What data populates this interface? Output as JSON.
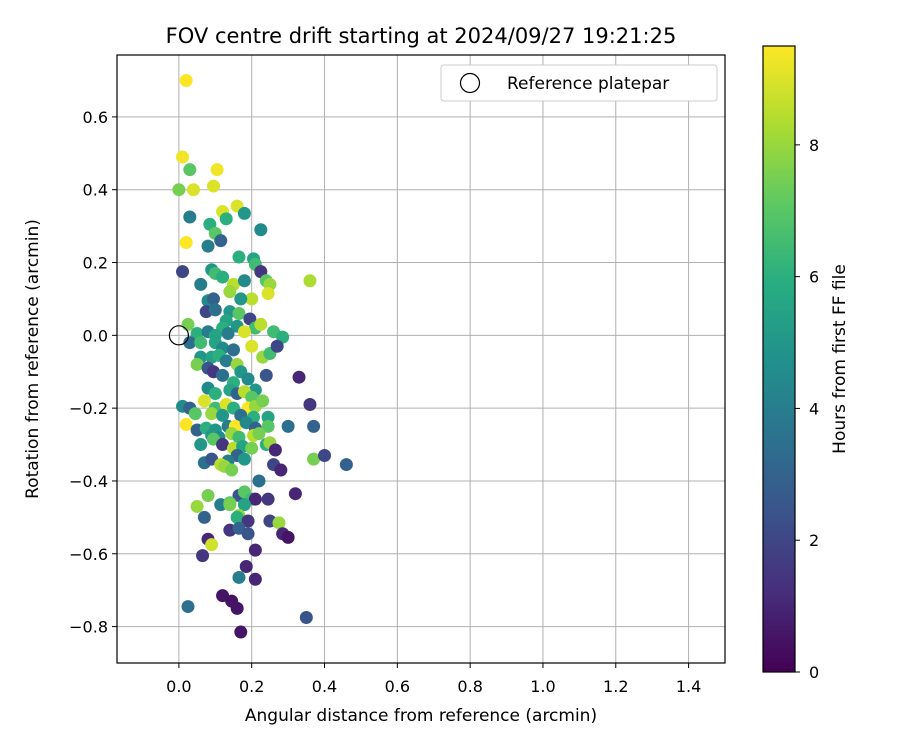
{
  "chart_data": {
    "type": "scatter",
    "title": "FOV centre drift starting at 2024/09/27 19:21:25",
    "xlabel": "Angular distance from reference (arcmin)",
    "ylabel": "Rotation from reference (arcmin)",
    "xlim": [
      -0.17,
      1.5
    ],
    "ylim": [
      -0.9,
      0.77
    ],
    "x_ticks": [
      0.0,
      0.2,
      0.4,
      0.6,
      0.8,
      1.0,
      1.2,
      1.4
    ],
    "x_tick_labels": [
      "0.0",
      "0.2",
      "0.4",
      "0.6",
      "0.8",
      "1.0",
      "1.2",
      "1.4"
    ],
    "y_ticks": [
      0.6,
      0.4,
      0.2,
      0.0,
      -0.2,
      -0.4,
      -0.6,
      -0.8
    ],
    "y_tick_labels": [
      "0.6",
      "0.4",
      "0.2",
      "0.0",
      "−0.2",
      "−0.4",
      "−0.6",
      "−0.8"
    ],
    "grid": true,
    "legend": {
      "placement": "top-right",
      "entries": [
        {
          "label": "Reference platepar",
          "marker": "open-circle"
        }
      ]
    },
    "reference_point": {
      "x": 0.0,
      "y": 0.0
    },
    "colorbar": {
      "label": "Hours from first FF file",
      "colormap": "viridis",
      "min": 0,
      "max": 9.5,
      "ticks": [
        0,
        2,
        4,
        6,
        8
      ],
      "tick_labels": [
        "0",
        "2",
        "4",
        "6",
        "8"
      ]
    },
    "points": [
      [
        0.02,
        0.7,
        9.5
      ],
      [
        0.01,
        0.49,
        9.3
      ],
      [
        0.04,
        0.4,
        9.0
      ],
      [
        0.105,
        0.455,
        9.3
      ],
      [
        0.095,
        0.41,
        9.0
      ],
      [
        0.0,
        0.4,
        7.5
      ],
      [
        0.03,
        0.455,
        7.0
      ],
      [
        0.16,
        0.355,
        9.0
      ],
      [
        0.12,
        0.34,
        9.0
      ],
      [
        0.13,
        0.32,
        6.0
      ],
      [
        0.085,
        0.305,
        6.0
      ],
      [
        0.1,
        0.28,
        7.0
      ],
      [
        0.03,
        0.325,
        4.0
      ],
      [
        0.02,
        0.255,
        9.5
      ],
      [
        0.18,
        0.335,
        5.0
      ],
      [
        0.225,
        0.29,
        4.5
      ],
      [
        0.08,
        0.245,
        4.0
      ],
      [
        0.115,
        0.26,
        3.0
      ],
      [
        0.01,
        0.175,
        2.0
      ],
      [
        0.165,
        0.215,
        6.0
      ],
      [
        0.205,
        0.21,
        5.5
      ],
      [
        0.21,
        0.195,
        6.5
      ],
      [
        0.225,
        0.175,
        1.5
      ],
      [
        0.09,
        0.18,
        5.0
      ],
      [
        0.1,
        0.17,
        6.5
      ],
      [
        0.12,
        0.16,
        6.0
      ],
      [
        0.06,
        0.14,
        4.0
      ],
      [
        0.15,
        0.14,
        8.5
      ],
      [
        0.18,
        0.15,
        4.5
      ],
      [
        0.24,
        0.15,
        7.0
      ],
      [
        0.25,
        0.14,
        8.0
      ],
      [
        0.36,
        0.15,
        8.3
      ],
      [
        0.14,
        0.12,
        8.0
      ],
      [
        0.2,
        0.1,
        8.5
      ],
      [
        0.245,
        0.115,
        9.0
      ],
      [
        0.08,
        0.095,
        4.5
      ],
      [
        0.095,
        0.1,
        3.0
      ],
      [
        0.17,
        0.1,
        5.0
      ],
      [
        0.075,
        0.065,
        2.0
      ],
      [
        0.1,
        0.07,
        3.5
      ],
      [
        0.14,
        0.065,
        5.0
      ],
      [
        0.165,
        0.06,
        7.0
      ],
      [
        0.195,
        0.045,
        2.0
      ],
      [
        0.13,
        0.04,
        5.5
      ],
      [
        0.21,
        0.02,
        6.5
      ],
      [
        0.225,
        0.03,
        8.5
      ],
      [
        0.12,
        0.02,
        6.0
      ],
      [
        0.16,
        0.025,
        5.0
      ],
      [
        0.025,
        0.03,
        7.5
      ],
      [
        0.05,
        0.005,
        6.0
      ],
      [
        0.08,
        0.01,
        4.0
      ],
      [
        0.1,
        0.0,
        5.5
      ],
      [
        0.135,
        0.005,
        4.0
      ],
      [
        0.18,
        0.01,
        9.0
      ],
      [
        0.26,
        0.01,
        6.5
      ],
      [
        0.285,
        -0.005,
        6.0
      ],
      [
        0.03,
        -0.02,
        3.5
      ],
      [
        0.06,
        -0.02,
        6.5
      ],
      [
        0.1,
        -0.02,
        5.5
      ],
      [
        0.12,
        -0.035,
        4.5
      ],
      [
        0.15,
        -0.04,
        3.5
      ],
      [
        0.2,
        -0.03,
        9.0
      ],
      [
        0.23,
        -0.06,
        8.0
      ],
      [
        0.25,
        -0.05,
        6.5
      ],
      [
        0.27,
        -0.03,
        2.0
      ],
      [
        0.06,
        -0.06,
        5.0
      ],
      [
        0.09,
        -0.06,
        5.5
      ],
      [
        0.11,
        -0.055,
        6.0
      ],
      [
        0.13,
        -0.07,
        4.0
      ],
      [
        0.16,
        -0.08,
        8.0
      ],
      [
        0.05,
        -0.08,
        7.5
      ],
      [
        0.08,
        -0.09,
        2.5
      ],
      [
        0.095,
        -0.1,
        1.5
      ],
      [
        0.12,
        -0.11,
        3.5
      ],
      [
        0.15,
        -0.13,
        6.0
      ],
      [
        0.17,
        -0.1,
        5.0
      ],
      [
        0.19,
        -0.12,
        4.5
      ],
      [
        0.21,
        -0.15,
        5.0
      ],
      [
        0.24,
        -0.11,
        2.5
      ],
      [
        0.33,
        -0.115,
        1.0
      ],
      [
        0.08,
        -0.145,
        4.5
      ],
      [
        0.1,
        -0.16,
        6.0
      ],
      [
        0.14,
        -0.15,
        5.5
      ],
      [
        0.16,
        -0.16,
        3.0
      ],
      [
        0.18,
        -0.155,
        8.5
      ],
      [
        0.2,
        -0.17,
        7.0
      ],
      [
        0.07,
        -0.18,
        9.0
      ],
      [
        0.1,
        -0.2,
        6.5
      ],
      [
        0.13,
        -0.19,
        9.0
      ],
      [
        0.15,
        -0.2,
        6.0
      ],
      [
        0.19,
        -0.2,
        9.5
      ],
      [
        0.21,
        -0.195,
        8.0
      ],
      [
        0.23,
        -0.18,
        7.5
      ],
      [
        0.01,
        -0.195,
        4.5
      ],
      [
        0.03,
        -0.2,
        3.0
      ],
      [
        0.045,
        -0.215,
        7.0
      ],
      [
        0.09,
        -0.215,
        8.0
      ],
      [
        0.12,
        -0.22,
        5.0
      ],
      [
        0.17,
        -0.22,
        3.5
      ],
      [
        0.205,
        -0.225,
        6.0
      ],
      [
        0.245,
        -0.225,
        5.5
      ],
      [
        0.36,
        -0.19,
        1.5
      ],
      [
        0.02,
        -0.245,
        9.5
      ],
      [
        0.05,
        -0.26,
        3.0
      ],
      [
        0.075,
        -0.255,
        6.0
      ],
      [
        0.1,
        -0.26,
        5.0
      ],
      [
        0.135,
        -0.25,
        4.0
      ],
      [
        0.155,
        -0.25,
        9.5
      ],
      [
        0.185,
        -0.24,
        4.5
      ],
      [
        0.21,
        -0.255,
        3.0
      ],
      [
        0.245,
        -0.25,
        7.0
      ],
      [
        0.3,
        -0.25,
        3.5
      ],
      [
        0.37,
        -0.25,
        3.0
      ],
      [
        0.09,
        -0.275,
        5.0
      ],
      [
        0.11,
        -0.28,
        4.5
      ],
      [
        0.145,
        -0.27,
        8.0
      ],
      [
        0.165,
        -0.28,
        6.5
      ],
      [
        0.205,
        -0.275,
        8.5
      ],
      [
        0.22,
        -0.27,
        7.5
      ],
      [
        0.06,
        -0.3,
        5.0
      ],
      [
        0.095,
        -0.285,
        7.0
      ],
      [
        0.12,
        -0.3,
        1.5
      ],
      [
        0.15,
        -0.31,
        8.5
      ],
      [
        0.175,
        -0.305,
        5.5
      ],
      [
        0.2,
        -0.31,
        7.5
      ],
      [
        0.24,
        -0.3,
        6.0
      ],
      [
        0.25,
        -0.295,
        8.0
      ],
      [
        0.265,
        -0.315,
        1.0
      ],
      [
        0.16,
        -0.33,
        3.0
      ],
      [
        0.135,
        -0.345,
        4.0
      ],
      [
        0.18,
        -0.34,
        5.0
      ],
      [
        0.07,
        -0.35,
        3.5
      ],
      [
        0.09,
        -0.34,
        2.5
      ],
      [
        0.115,
        -0.355,
        8.5
      ],
      [
        0.125,
        -0.36,
        8.0
      ],
      [
        0.145,
        -0.37,
        7.5
      ],
      [
        0.26,
        -0.355,
        2.0
      ],
      [
        0.28,
        -0.37,
        1.0
      ],
      [
        0.37,
        -0.34,
        7.5
      ],
      [
        0.4,
        -0.33,
        2.0
      ],
      [
        0.46,
        -0.355,
        3.0
      ],
      [
        0.22,
        -0.4,
        3.5
      ],
      [
        0.08,
        -0.44,
        7.5
      ],
      [
        0.165,
        -0.44,
        2.5
      ],
      [
        0.18,
        -0.43,
        7.0
      ],
      [
        0.2,
        -0.45,
        6.5
      ],
      [
        0.21,
        -0.45,
        1.0
      ],
      [
        0.245,
        -0.45,
        1.5
      ],
      [
        0.32,
        -0.435,
        1.0
      ],
      [
        0.05,
        -0.47,
        8.0
      ],
      [
        0.115,
        -0.465,
        4.0
      ],
      [
        0.14,
        -0.46,
        7.0
      ],
      [
        0.14,
        -0.465,
        7.5
      ],
      [
        0.18,
        -0.465,
        5.5
      ],
      [
        0.07,
        -0.5,
        3.0
      ],
      [
        0.165,
        -0.495,
        8.0
      ],
      [
        0.16,
        -0.5,
        6.0
      ],
      [
        0.19,
        -0.51,
        1.5
      ],
      [
        0.25,
        -0.51,
        2.0
      ],
      [
        0.275,
        -0.515,
        8.0
      ],
      [
        0.14,
        -0.535,
        1.5
      ],
      [
        0.165,
        -0.53,
        3.0
      ],
      [
        0.19,
        -0.545,
        2.5
      ],
      [
        0.285,
        -0.545,
        1.0
      ],
      [
        0.3,
        -0.555,
        0.5
      ],
      [
        0.08,
        -0.56,
        1.0
      ],
      [
        0.09,
        -0.575,
        8.8
      ],
      [
        0.065,
        -0.605,
        1.5
      ],
      [
        0.21,
        -0.59,
        1.0
      ],
      [
        0.165,
        -0.665,
        4.0
      ],
      [
        0.185,
        -0.635,
        1.0
      ],
      [
        0.21,
        -0.67,
        1.0
      ],
      [
        0.12,
        -0.715,
        0.5
      ],
      [
        0.145,
        -0.73,
        0.5
      ],
      [
        0.16,
        -0.75,
        0.5
      ],
      [
        0.025,
        -0.745,
        3.5
      ],
      [
        0.35,
        -0.775,
        2.5
      ],
      [
        0.17,
        -0.815,
        0.5
      ]
    ]
  }
}
